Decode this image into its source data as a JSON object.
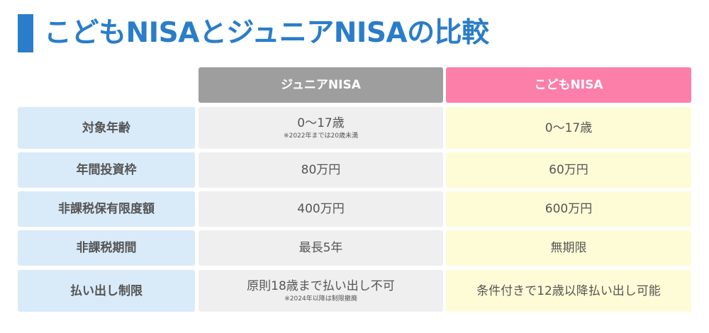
{
  "title": "こどもNISAとジュニアNISAの比較",
  "columns": {
    "junior": "ジュニアNISA",
    "kodomo": "こどもNISA"
  },
  "colors": {
    "accent": "#2a7dc9",
    "junior_header": "#9e9e9e",
    "kodomo_header": "#fb7fa9",
    "label_bg": "#d9ebf9",
    "junior_bg": "#efefef",
    "kodomo_bg": "#fefcd6"
  },
  "rows": [
    {
      "label": "対象年齢",
      "junior": "0〜17歳",
      "junior_note": "※2022年までは20歳未満",
      "kodomo": "0〜17歳"
    },
    {
      "label": "年間投資枠",
      "junior": "80万円",
      "kodomo": "60万円"
    },
    {
      "label": "非課税保有限度額",
      "junior": "400万円",
      "kodomo": "600万円"
    },
    {
      "label": "非課税期間",
      "junior": "最長5年",
      "kodomo": "無期限"
    },
    {
      "label": "払い出し制限",
      "junior": "原則18歳まで払い出し不可",
      "junior_note": "※2024年以降は制限撤廃",
      "kodomo": "条件付きで12歳以降払い出し可能"
    }
  ]
}
